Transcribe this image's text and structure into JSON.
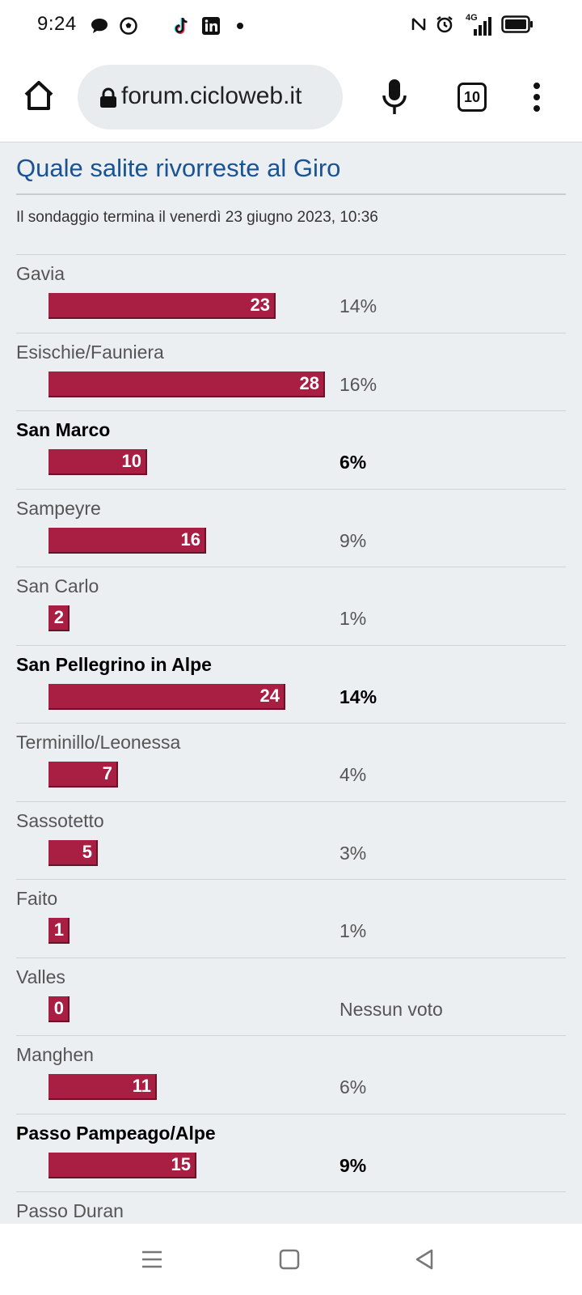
{
  "status_bar": {
    "time": "9:24",
    "icons_left": [
      "chat-bubble-icon",
      "soccer-ball-icon",
      "tiktok-icon",
      "linkedin-icon",
      "notification-dot-icon"
    ],
    "icons_right": [
      "nfc-icon",
      "alarm-icon",
      "signal-4g-icon",
      "battery-icon"
    ],
    "network": "4G"
  },
  "browser": {
    "url": "forum.cicloweb.it",
    "tab_count": "10"
  },
  "poll": {
    "title": "Quale salite rivorreste al Giro",
    "ends": "Il sondaggio termina il venerdì 23 giugno 2023, 10:36",
    "options": [
      {
        "label": "Gavia",
        "votes": "23",
        "percent": "14%",
        "voted": false
      },
      {
        "label": "Esischie/Fauniera",
        "votes": "28",
        "percent": "16%",
        "voted": false
      },
      {
        "label": "San Marco",
        "votes": "10",
        "percent": "6%",
        "voted": true
      },
      {
        "label": "Sampeyre",
        "votes": "16",
        "percent": "9%",
        "voted": false
      },
      {
        "label": "San Carlo",
        "votes": "2",
        "percent": "1%",
        "voted": false
      },
      {
        "label": "San Pellegrino in Alpe",
        "votes": "24",
        "percent": "14%",
        "voted": true
      },
      {
        "label": "Terminillo/Leonessa",
        "votes": "7",
        "percent": "4%",
        "voted": false
      },
      {
        "label": "Sassotetto",
        "votes": "5",
        "percent": "3%",
        "voted": false
      },
      {
        "label": "Faito",
        "votes": "1",
        "percent": "1%",
        "voted": false
      },
      {
        "label": "Valles",
        "votes": "0",
        "percent": "Nessun voto",
        "voted": false
      },
      {
        "label": "Manghen",
        "votes": "11",
        "percent": "6%",
        "voted": false
      },
      {
        "label": "Passo Pampeago/Alpe",
        "votes": "15",
        "percent": "9%",
        "voted": true
      },
      {
        "label": "Passo Duran",
        "votes": "",
        "percent": "",
        "voted": false
      }
    ]
  },
  "colors": {
    "bar": "#a91f43",
    "title": "#1a5391",
    "content_bg": "#eceff2"
  }
}
